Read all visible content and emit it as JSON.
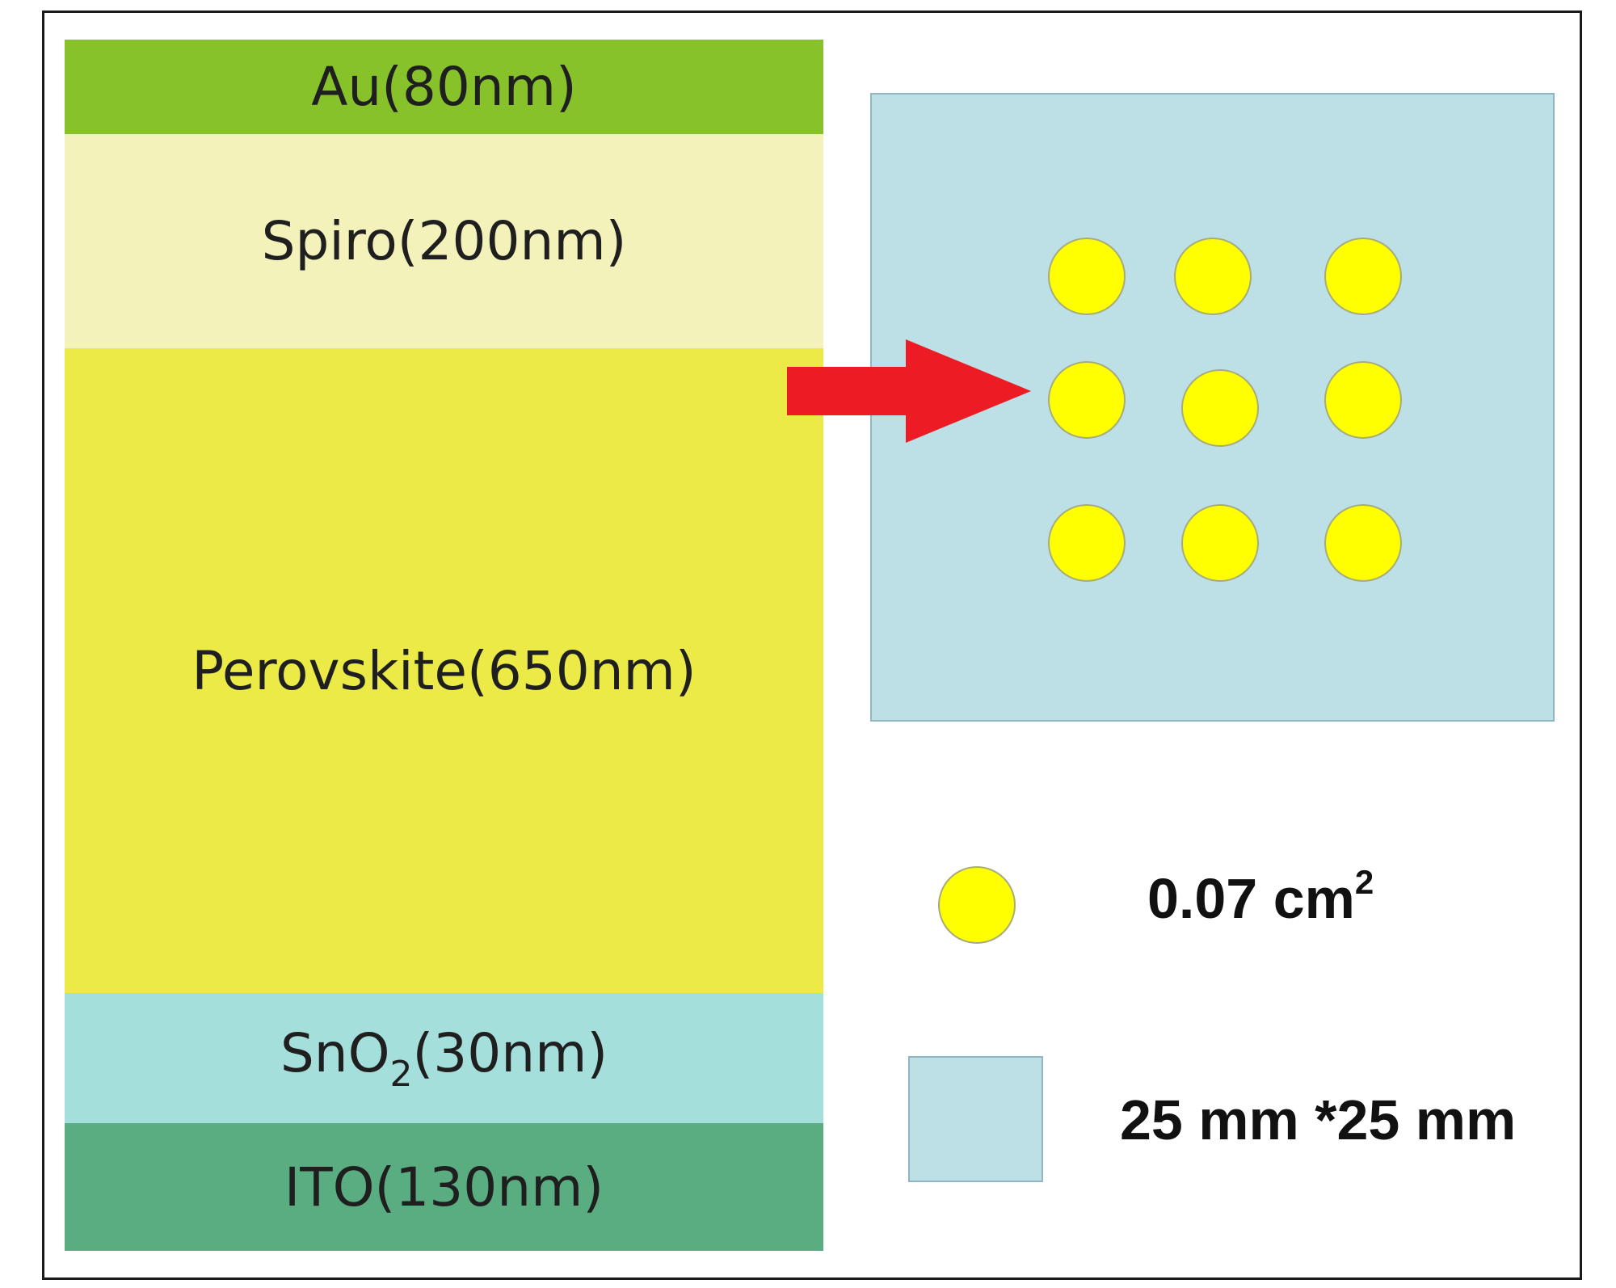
{
  "layers": [
    {
      "text": "Au(80nm)",
      "color": "#88c22b"
    },
    {
      "text": "Spiro(200nm)",
      "color": "#f4f2bb"
    },
    {
      "text": "Perovskite(650nm)",
      "color": "#ecea46"
    },
    {
      "pre": "SnO",
      "sub": "2",
      "post": "(30nm)",
      "color": "#a5dfdb"
    },
    {
      "text": "ITO(130nm)",
      "color": "#5aad80"
    }
  ],
  "colors": {
    "electrode_dot": "#ffff00",
    "substrate": "#bddfe6",
    "arrow": "#ed1c24",
    "frame": "#1a1a1a"
  },
  "legend": {
    "dot_area": "0.07 cm",
    "dot_area_sup": "2",
    "substrate_size": "25 mm *25 mm"
  },
  "icons": [
    "electrode-dot-icon",
    "substrate-square-icon",
    "red-right-arrow-icon"
  ]
}
